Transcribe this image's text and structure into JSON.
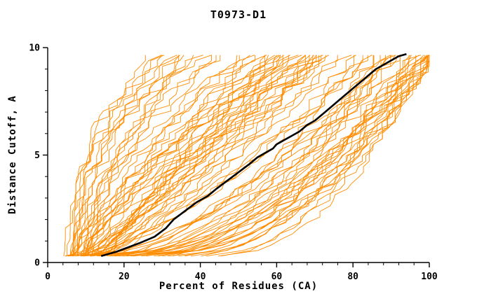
{
  "title": "T0973-D1",
  "colors": {
    "orange": "#ff8c00",
    "black": "#000000",
    "axis": "#000000",
    "background": "#ffffff"
  },
  "chart_data": {
    "type": "line",
    "title": "T0973-D1",
    "xlabel": "Percent of Residues (CA)",
    "ylabel": "Distance Cutoff, A",
    "xlim": [
      0,
      100
    ],
    "ylim": [
      0,
      10
    ],
    "x_major_ticks": [
      0,
      20,
      40,
      60,
      80,
      100
    ],
    "x_minor_step": 4,
    "y_major_ticks": [
      0,
      5,
      10
    ],
    "y_minor_step": 1,
    "grid": false,
    "legend": "none",
    "series": [
      {
        "name": "highlighted-model-black",
        "color": "#000000",
        "width": 2.6,
        "points": [
          [
            14,
            0.3
          ],
          [
            18,
            0.5
          ],
          [
            24,
            0.9
          ],
          [
            28,
            1.2
          ],
          [
            31,
            1.6
          ],
          [
            33,
            2.0
          ],
          [
            36,
            2.4
          ],
          [
            39,
            2.8
          ],
          [
            42,
            3.1
          ],
          [
            44,
            3.4
          ],
          [
            47,
            3.8
          ],
          [
            50,
            4.2
          ],
          [
            53,
            4.6
          ],
          [
            55,
            4.9
          ],
          [
            57,
            5.1
          ],
          [
            59,
            5.3
          ],
          [
            60,
            5.5
          ],
          [
            62,
            5.7
          ],
          [
            64,
            5.9
          ],
          [
            66,
            6.1
          ],
          [
            68,
            6.4
          ],
          [
            70,
            6.6
          ],
          [
            72,
            6.9
          ],
          [
            74,
            7.2
          ],
          [
            76,
            7.5
          ],
          [
            78,
            7.8
          ],
          [
            80,
            8.1
          ],
          [
            82,
            8.4
          ],
          [
            84,
            8.7
          ],
          [
            86,
            9.0
          ],
          [
            88,
            9.2
          ],
          [
            90,
            9.4
          ],
          [
            92,
            9.6
          ],
          [
            94,
            9.7
          ]
        ]
      }
    ],
    "orange_models": {
      "name": "server-model-curves",
      "color": "#ff8c00",
      "width": 0.9,
      "y_start": 0.3,
      "y_end": 9.65,
      "curves": [
        [
          5,
          26,
          2.2
        ],
        [
          6,
          28,
          2.0
        ],
        [
          7,
          30,
          1.8
        ],
        [
          5,
          32,
          2.4
        ],
        [
          8,
          34,
          1.9
        ],
        [
          6,
          36,
          2.1
        ],
        [
          9,
          38,
          1.7
        ],
        [
          7,
          40,
          2.3
        ],
        [
          10,
          42,
          1.6
        ],
        [
          8,
          44,
          2.0
        ],
        [
          6,
          30,
          2.6
        ],
        [
          9,
          35,
          1.5
        ],
        [
          11,
          45,
          1.8
        ],
        [
          7,
          33,
          2.2
        ],
        [
          10,
          39,
          2.0
        ],
        [
          6,
          50,
          1.2
        ],
        [
          8,
          52,
          1.0
        ],
        [
          10,
          54,
          1.4
        ],
        [
          12,
          56,
          0.9
        ],
        [
          7,
          58,
          1.3
        ],
        [
          9,
          60,
          1.1
        ],
        [
          11,
          62,
          0.8
        ],
        [
          13,
          64,
          1.5
        ],
        [
          6,
          66,
          1.0
        ],
        [
          8,
          68,
          1.2
        ],
        [
          10,
          70,
          0.9
        ],
        [
          12,
          72,
          1.3
        ],
        [
          14,
          74,
          1.1
        ],
        [
          7,
          55,
          1.6
        ],
        [
          9,
          57,
          0.7
        ],
        [
          11,
          59,
          1.4
        ],
        [
          13,
          61,
          1.0
        ],
        [
          15,
          63,
          1.2
        ],
        [
          8,
          65,
          0.8
        ],
        [
          10,
          67,
          1.5
        ],
        [
          12,
          69,
          1.1
        ],
        [
          14,
          71,
          0.9
        ],
        [
          16,
          73,
          1.3
        ],
        [
          6,
          53,
          1.7
        ],
        [
          9,
          66,
          0.95
        ],
        [
          11,
          58,
          1.25
        ],
        [
          13,
          70,
          0.85
        ],
        [
          15,
          62,
          1.15
        ],
        [
          17,
          74,
          1.05
        ],
        [
          7,
          63,
          1.35
        ],
        [
          10,
          51,
          1.45
        ],
        [
          12,
          75,
          0.75
        ],
        [
          14,
          68,
          1.0
        ],
        [
          16,
          59,
          1.2
        ],
        [
          18,
          72,
          0.9
        ],
        [
          5,
          80,
          0.6
        ],
        [
          7,
          82,
          0.5
        ],
        [
          9,
          84,
          0.7
        ],
        [
          11,
          86,
          0.45
        ],
        [
          13,
          88,
          0.65
        ],
        [
          15,
          90,
          0.5
        ],
        [
          17,
          92,
          0.6
        ],
        [
          19,
          94,
          0.4
        ],
        [
          21,
          96,
          0.55
        ],
        [
          23,
          98,
          0.5
        ],
        [
          25,
          100,
          0.45
        ],
        [
          6,
          85,
          0.35
        ],
        [
          8,
          87,
          0.55
        ],
        [
          10,
          89,
          0.4
        ],
        [
          12,
          91,
          0.6
        ],
        [
          14,
          93,
          0.5
        ],
        [
          16,
          95,
          0.45
        ],
        [
          18,
          97,
          0.38
        ],
        [
          20,
          99,
          0.52
        ],
        [
          22,
          100,
          0.42
        ],
        [
          28,
          95,
          0.5
        ],
        [
          30,
          97,
          0.55
        ],
        [
          32,
          99,
          0.45
        ],
        [
          35,
          100,
          0.5
        ],
        [
          38,
          100,
          0.55
        ],
        [
          40,
          100,
          0.6
        ],
        [
          42,
          100,
          0.5
        ],
        [
          45,
          100,
          0.55
        ],
        [
          5,
          78,
          0.8
        ],
        [
          8,
          80,
          0.75
        ],
        [
          11,
          83,
          0.7
        ],
        [
          14,
          86,
          0.85
        ],
        [
          17,
          89,
          0.65
        ],
        [
          20,
          92,
          0.75
        ],
        [
          23,
          95,
          0.7
        ],
        [
          26,
          98,
          0.6
        ],
        [
          29,
          100,
          0.65
        ],
        [
          33,
          98,
          0.7
        ],
        [
          36,
          99,
          0.6
        ],
        [
          44,
          99,
          0.45
        ]
      ]
    }
  }
}
